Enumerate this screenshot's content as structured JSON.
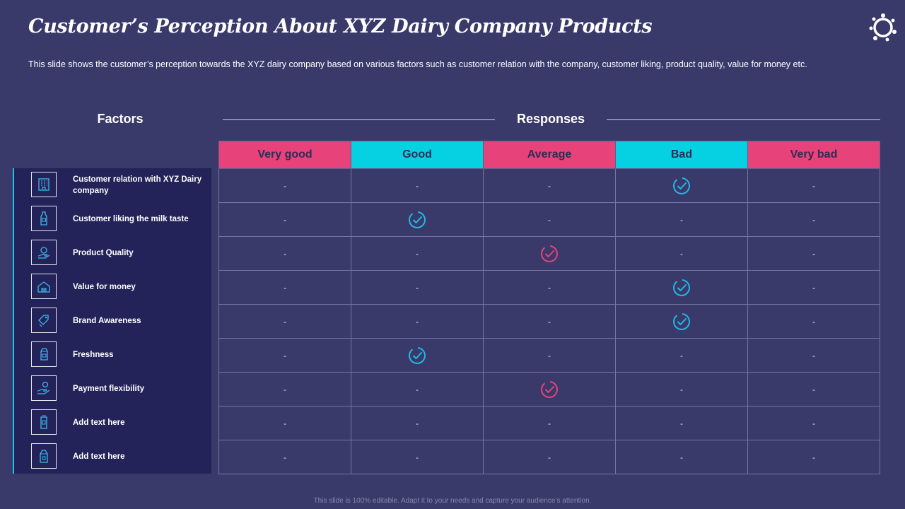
{
  "title": "Customer’s Perception About XYZ Dairy Company Products",
  "subtitle": "This slide shows the customer’s perception towards the XYZ dairy company based on various  factors such as customer relation with the company, customer liking, product quality, value  for money etc.",
  "factors_heading": "Factors",
  "responses_heading": "Responses",
  "columns": [
    "Very good",
    "Good",
    "Average",
    "Bad",
    "Very bad"
  ],
  "column_colors": [
    "#e8427a",
    "#05d1e3",
    "#e8427a",
    "#05d1e3",
    "#e8427a"
  ],
  "check_colors": {
    "cyan": "#22b8e6",
    "pink": "#e8427a"
  },
  "empty_cell": "-",
  "rows": [
    {
      "factor": "Customer relation with XYZ Dairy company",
      "icon": "building-icon",
      "response": "Bad"
    },
    {
      "factor": "Customer liking  the milk taste",
      "icon": "milk-bottle-icon",
      "response": "Good"
    },
    {
      "factor": "Product Quality",
      "icon": "quality-hand-icon",
      "response": "Average"
    },
    {
      "factor": "Value for money",
      "icon": "farm-barn-icon",
      "response": "Bad"
    },
    {
      "factor": "Brand Awareness",
      "icon": "brand-tag-icon",
      "response": "Bad"
    },
    {
      "factor": "Freshness",
      "icon": "milk-carton-icon",
      "response": "Good"
    },
    {
      "factor": "Payment flexibility",
      "icon": "payment-hand-icon",
      "response": "Average"
    },
    {
      "factor": "Add text here",
      "icon": "milk-bottle-tall-icon",
      "response": ""
    },
    {
      "factor": "Add text here",
      "icon": "milk-box-icon",
      "response": ""
    }
  ],
  "footer": "This slide is 100% editable. Adapt it to your needs and capture your audience’s attention."
}
